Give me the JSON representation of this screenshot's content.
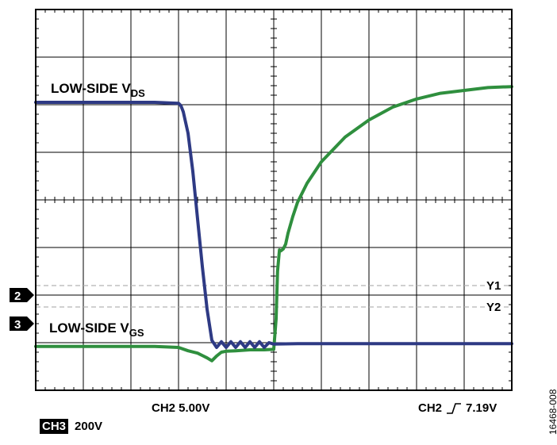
{
  "chart_data": {
    "type": "line",
    "title": "",
    "xlabel": "",
    "ylabel": "",
    "x_divisions": 10,
    "y_divisions": 8,
    "xlim": [
      0,
      10
    ],
    "ylim": [
      0,
      8
    ],
    "grid": true,
    "series": [
      {
        "name": "LOW-SIDE VDS",
        "label_main": "LOW-SIDE V",
        "label_sub": "DS",
        "color": "#2e3a84",
        "x": [
          0,
          0.5,
          1,
          1.5,
          2,
          2.5,
          3.0,
          3.05,
          3.1,
          3.2,
          3.3,
          3.4,
          3.5,
          3.6,
          3.7,
          3.8,
          3.9,
          4.0,
          4.1,
          4.2,
          4.3,
          4.4,
          4.5,
          4.6,
          4.7,
          4.8,
          4.9,
          5.0,
          5.5,
          6,
          7,
          8,
          9,
          10
        ],
        "y": [
          6.05,
          6.05,
          6.05,
          6.05,
          6.05,
          6.05,
          6.03,
          5.98,
          5.85,
          5.4,
          4.6,
          3.6,
          2.6,
          1.7,
          1.05,
          0.9,
          1.02,
          0.9,
          1.02,
          0.9,
          1.02,
          0.9,
          1.02,
          0.9,
          1.02,
          0.9,
          1.0,
          0.97,
          0.98,
          0.98,
          0.98,
          0.98,
          0.98,
          0.98
        ]
      },
      {
        "name": "LOW-SIDE VGS",
        "label_main": "LOW-SIDE V",
        "label_sub": "GS",
        "color": "#2f8f3e",
        "x": [
          0,
          0.5,
          1,
          1.5,
          2,
          2.5,
          3.0,
          3.2,
          3.4,
          3.6,
          3.7,
          3.8,
          3.9,
          4.0,
          4.2,
          4.5,
          4.8,
          5.0,
          5.05,
          5.08,
          5.12,
          5.15,
          5.2,
          5.25,
          5.3,
          5.4,
          5.5,
          5.7,
          6.0,
          6.5,
          7.0,
          7.5,
          8.0,
          8.5,
          9.0,
          9.5,
          10.0
        ],
        "y": [
          0.92,
          0.92,
          0.92,
          0.92,
          0.92,
          0.92,
          0.9,
          0.83,
          0.78,
          0.68,
          0.62,
          0.72,
          0.8,
          0.82,
          0.83,
          0.85,
          0.85,
          0.86,
          1.5,
          2.5,
          2.95,
          2.93,
          2.97,
          3.07,
          3.3,
          3.65,
          3.95,
          4.35,
          4.8,
          5.32,
          5.68,
          5.95,
          6.12,
          6.24,
          6.3,
          6.36,
          6.38
        ]
      }
    ],
    "markers": [
      {
        "label": "2",
        "y": 2.0
      },
      {
        "label": "3",
        "y": 1.4
      }
    ],
    "cursors": [
      {
        "label": "Y1",
        "y": 2.2
      },
      {
        "label": "Y2",
        "y": 1.75
      }
    ],
    "bottom": {
      "ch2_scale": "CH2 5.00V",
      "trigger_prefix": "CH2",
      "trigger_value": "7.19V",
      "ch3_tag": "CH3",
      "ch3_scale": "200V"
    },
    "figure_id": "16468-008",
    "colors": {
      "grid": "#000000",
      "cursor": "#b5b5b5",
      "vds": "#2e3a84",
      "vgs": "#2f8f3e"
    }
  }
}
